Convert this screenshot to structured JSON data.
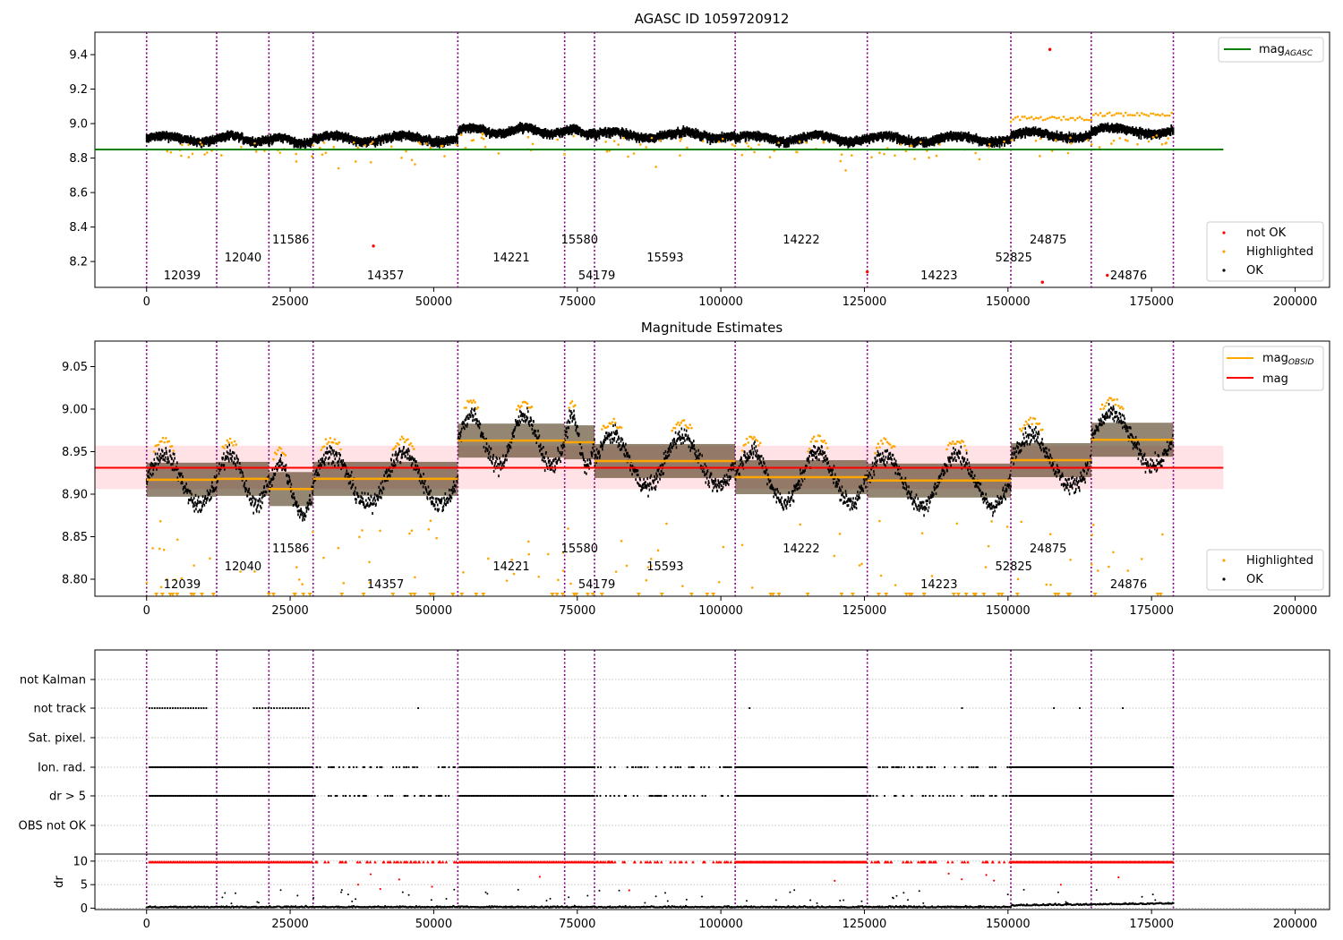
{
  "chart_data": [
    {
      "type": "scatter",
      "title": "AGASC ID 1059720912",
      "xlim": [
        -9000,
        206000
      ],
      "ylim": [
        8.05,
        9.53
      ],
      "x_ticks": [
        0,
        25000,
        50000,
        75000,
        100000,
        125000,
        150000,
        175000,
        200000
      ],
      "y_ticks": [
        8.2,
        8.4,
        8.6,
        8.8,
        9.0,
        9.2,
        9.4
      ],
      "y_tick_labels": [
        "8.2",
        "8.4",
        "8.6",
        "8.8",
        "9.0",
        "9.2",
        "9.4"
      ],
      "mag_agasc": 8.85,
      "legend_upper": {
        "position": "top-right",
        "entries": [
          "mag<tspan font-size='9' dy='3'>AGASC</tspan>"
        ],
        "label_main": "mag",
        "label_sub": "AGASC",
        "color": "#008000"
      },
      "legend_lower": {
        "position": "bottom-right",
        "entries": [
          "not OK",
          "Highlighted",
          "OK"
        ]
      },
      "outliers_red": [
        [
          157300,
          9.43
        ],
        [
          39500,
          8.29
        ],
        [
          156000,
          8.08
        ],
        [
          167300,
          8.12
        ],
        [
          125500,
          8.14
        ]
      ]
    },
    {
      "type": "scatter",
      "title": "Magnitude Estimates",
      "xlim": [
        -9000,
        206000
      ],
      "ylim": [
        8.78,
        9.08
      ],
      "x_ticks": [
        0,
        25000,
        50000,
        75000,
        100000,
        125000,
        150000,
        175000,
        200000
      ],
      "y_ticks": [
        8.8,
        8.85,
        8.9,
        8.95,
        9.0,
        9.05
      ],
      "y_tick_labels": [
        "8.80",
        "8.85",
        "8.90",
        "8.95",
        "9.00",
        "9.05"
      ],
      "mag": 8.931,
      "mag_band": [
        8.906,
        8.957
      ],
      "obsid_mag": [
        {
          "x0": 0,
          "x1": 12200,
          "mag": 8.917
        },
        {
          "x0": 12200,
          "x1": 21300,
          "mag": 8.918
        },
        {
          "x0": 21300,
          "x1": 29000,
          "mag": 8.906
        },
        {
          "x0": 29000,
          "x1": 54200,
          "mag": 8.918
        },
        {
          "x0": 54200,
          "x1": 72800,
          "mag": 8.963
        },
        {
          "x0": 72800,
          "x1": 78000,
          "mag": 8.961
        },
        {
          "x0": 78000,
          "x1": 102500,
          "mag": 8.939
        },
        {
          "x0": 102500,
          "x1": 125500,
          "mag": 8.92
        },
        {
          "x0": 125500,
          "x1": 150500,
          "mag": 8.916
        },
        {
          "x0": 150500,
          "x1": 164500,
          "mag": 8.94
        },
        {
          "x0": 164500,
          "x1": 178800,
          "mag": 8.964
        }
      ],
      "legend_upper": {
        "position": "top-right",
        "label_main": "mag",
        "label_sub": "OBSID",
        "mag_label": "mag"
      },
      "legend_lower": {
        "position": "bottom-right",
        "entries": [
          "Highlighted",
          "OK"
        ]
      }
    },
    {
      "type": "scatter",
      "title": "",
      "xlim": [
        -9000,
        206000
      ],
      "flag_labels": [
        "not Kalman",
        "not track",
        "Sat. pixel.",
        "Ion. rad.",
        "dr > 5",
        "OBS not OK"
      ],
      "dr_ylim": [
        -0.3,
        11.5
      ],
      "dr_ticks": [
        0,
        5,
        10
      ],
      "dr_tick_labels": [
        "0",
        "5",
        "10"
      ],
      "dr_label": "dr",
      "x_ticks": [
        0,
        25000,
        50000,
        75000,
        100000,
        125000,
        150000,
        175000,
        200000
      ]
    }
  ],
  "x_tick_labels": [
    "0",
    "25000",
    "50000",
    "75000",
    "100000",
    "125000",
    "150000",
    "175000",
    "200000"
  ],
  "obs_boundaries": [
    0,
    12200,
    21300,
    29000,
    54200,
    72800,
    78000,
    102500,
    125500,
    150500,
    164500,
    178800
  ],
  "obs_labels": [
    {
      "label": "12039",
      "x": 6200,
      "row": 2
    },
    {
      "label": "12040",
      "x": 16800,
      "row": 1
    },
    {
      "label": "11586",
      "x": 25100,
      "row": 0
    },
    {
      "label": "14357",
      "x": 41600,
      "row": 2
    },
    {
      "label": "14221",
      "x": 63500,
      "row": 1
    },
    {
      "label": "15580",
      "x": 75400,
      "row": 0
    },
    {
      "label": "54179",
      "x": 78400,
      "row": 2
    },
    {
      "label": "15593",
      "x": 90300,
      "row": 1
    },
    {
      "label": "14222",
      "x": 114000,
      "row": 0
    },
    {
      "label": "14223",
      "x": 138000,
      "row": 2
    },
    {
      "label": "52825",
      "x": 151000,
      "row": 1
    },
    {
      "label": "24875",
      "x": 157000,
      "row": 0
    },
    {
      "label": "24876",
      "x": 171000,
      "row": 2
    }
  ],
  "colors": {
    "ok": "#000000",
    "highlighted": "#ffa500",
    "not_ok": "#ff0000",
    "agasc": "#008000",
    "mag": "#ff0000",
    "obsid": "#ffa500",
    "boundary": "#800080",
    "band": "#ffb6c1"
  }
}
